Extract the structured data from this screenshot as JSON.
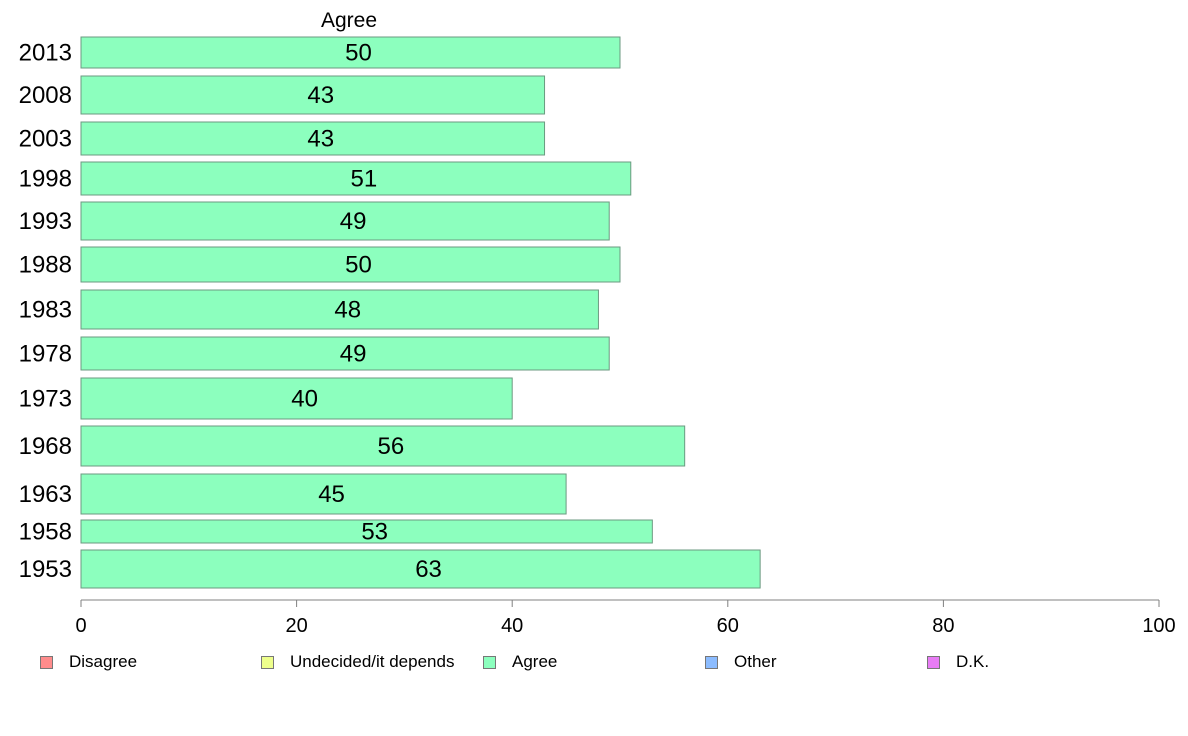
{
  "chart_data": {
    "type": "bar",
    "orientation": "horizontal",
    "title": "Agree",
    "categories": [
      "2013",
      "2008",
      "2003",
      "1998",
      "1993",
      "1988",
      "1983",
      "1978",
      "1973",
      "1968",
      "1963",
      "1958",
      "1953"
    ],
    "series": [
      {
        "name": "Agree",
        "values": [
          50,
          43,
          43,
          51,
          49,
          50,
          48,
          49,
          40,
          56,
          45,
          53,
          63
        ]
      }
    ],
    "data_labels": [
      "50",
      "43",
      "43",
      "51",
      "49",
      "50",
      "48",
      "49",
      "40",
      "56",
      "45",
      "53",
      "63"
    ],
    "xlim": [
      0,
      100
    ],
    "x_ticks": [
      "0",
      "20",
      "40",
      "60",
      "80",
      "100"
    ],
    "bar_color": "#8cffbe",
    "bar_edge_color": "#6b9a80",
    "grid": false,
    "legend": {
      "placement": "bottom",
      "items": [
        {
          "label": "Disagree",
          "color": "#ff8c8c"
        },
        {
          "label": "Undecided/it depends",
          "color": "#eeff8c"
        },
        {
          "label": "Agree",
          "color": "#8cffbe"
        },
        {
          "label": "Other",
          "color": "#8cbcff"
        },
        {
          "label": "D.K.",
          "color": "#e87cf5"
        }
      ]
    }
  }
}
